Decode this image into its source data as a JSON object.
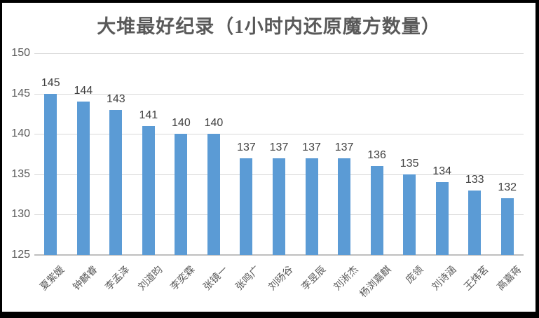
{
  "chart_data": {
    "type": "bar",
    "title": "大堆最好纪录（1小时内还原魔方数量）",
    "categories": [
      "夏紫媛",
      "钟麟睿",
      "李孟泽",
      "刘道昀",
      "李奕霖",
      "张镜一",
      "张鸣广",
      "刘旸谷",
      "李昱辰",
      "刘淅杰",
      "杨浏嘉麒",
      "庞领",
      "刘诗涵",
      "王炜茗",
      "高嘉蒋"
    ],
    "values": [
      145,
      144,
      143,
      141,
      140,
      140,
      137,
      137,
      137,
      137,
      136,
      135,
      134,
      133,
      132
    ],
    "data_labels": [
      "145",
      "144",
      "143",
      "141",
      "140",
      "140",
      "137",
      "137",
      "137",
      "137",
      "136",
      "135",
      "134",
      "133",
      "132"
    ],
    "xlabel": "",
    "ylabel": "",
    "ylim": [
      125,
      150
    ],
    "yticks": [
      125,
      130,
      135,
      140,
      145,
      150
    ],
    "grid": true,
    "legend_position": "none",
    "bar_color": "#5b9bd5",
    "gridline_color": "#d9d9d9",
    "baseline_color": "#bfbfbf",
    "axis_text_color": "#595959",
    "value_label_color": "#404040",
    "title_color": "#595959",
    "frame_color": "#000000"
  }
}
